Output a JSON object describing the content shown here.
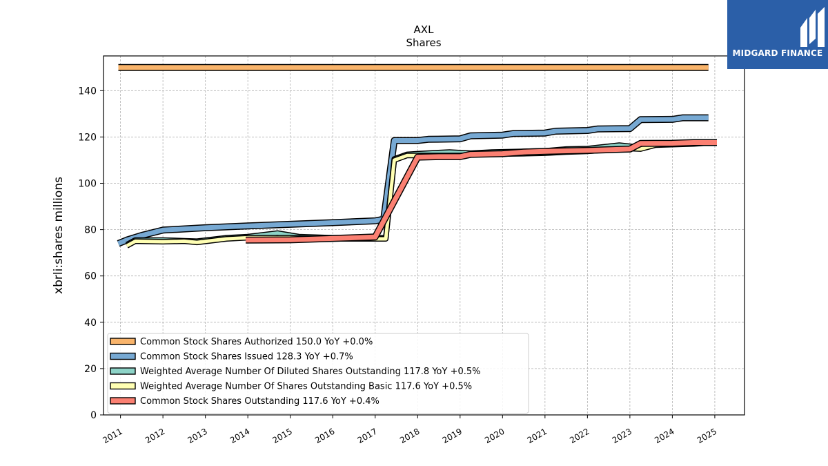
{
  "brand": {
    "name": "MIDGARD FINANCE",
    "color": "#2b5fa8"
  },
  "chart_data": {
    "type": "line",
    "title": "AXL",
    "subtitle": "Shares",
    "ylabel": "xbrli:shares millions",
    "xlabel": "",
    "xlim": [
      2010.6,
      2025.7
    ],
    "ylim": [
      0,
      155
    ],
    "x_ticks": [
      "2011",
      "2012",
      "2013",
      "2014",
      "2015",
      "2016",
      "2017",
      "2018",
      "2019",
      "2020",
      "2021",
      "2022",
      "2023",
      "2024",
      "2025"
    ],
    "y_ticks": [
      0,
      20,
      40,
      60,
      80,
      100,
      120,
      140
    ],
    "grid": true,
    "legend_position": "lower-left",
    "series": [
      {
        "name": "Common Stock Shares Authorized  150.0 YoY +0.0%",
        "color": "#f9b46b",
        "points": [
          [
            2010.95,
            150.0
          ],
          [
            2024.85,
            150.0
          ]
        ]
      },
      {
        "name": "Common Stock Shares Issued  128.3 YoY +0.7%",
        "color": "#77a9d3",
        "points": [
          [
            2010.95,
            74.0
          ],
          [
            2011.15,
            75.5
          ],
          [
            2011.5,
            77.5
          ],
          [
            2012.0,
            79.8
          ],
          [
            2013.0,
            80.8
          ],
          [
            2014.0,
            81.6
          ],
          [
            2015.0,
            82.3
          ],
          [
            2016.0,
            83.0
          ],
          [
            2017.0,
            83.8
          ],
          [
            2017.2,
            84.5
          ],
          [
            2017.45,
            118.5
          ],
          [
            2018.0,
            118.5
          ],
          [
            2018.25,
            119.0
          ],
          [
            2019.0,
            119.2
          ],
          [
            2019.25,
            120.5
          ],
          [
            2020.0,
            120.8
          ],
          [
            2020.25,
            121.5
          ],
          [
            2021.0,
            121.7
          ],
          [
            2021.25,
            122.5
          ],
          [
            2022.0,
            122.8
          ],
          [
            2022.25,
            123.5
          ],
          [
            2023.0,
            123.6
          ],
          [
            2023.25,
            127.5
          ],
          [
            2024.0,
            127.6
          ],
          [
            2024.25,
            128.3
          ],
          [
            2024.85,
            128.3
          ]
        ]
      },
      {
        "name": "Weighted Average Number Of Diluted Shares Outstanding  117.8 YoY +0.5%",
        "color": "#8dd3c7",
        "points": [
          [
            2011.15,
            73.5
          ],
          [
            2011.35,
            75.5
          ],
          [
            2012.0,
            75.5
          ],
          [
            2012.5,
            75.2
          ],
          [
            2012.8,
            75.0
          ],
          [
            2013.5,
            76.5
          ],
          [
            2014.0,
            77.0
          ],
          [
            2014.7,
            78.5
          ],
          [
            2015.2,
            77.0
          ],
          [
            2016.0,
            76.5
          ],
          [
            2017.0,
            76.5
          ],
          [
            2017.25,
            76.5
          ],
          [
            2017.45,
            110.5
          ],
          [
            2017.75,
            112.5
          ],
          [
            2018.0,
            112.8
          ],
          [
            2018.75,
            113.5
          ],
          [
            2019.25,
            113.0
          ],
          [
            2019.75,
            113.5
          ],
          [
            2020.5,
            113.8
          ],
          [
            2021.0,
            114.0
          ],
          [
            2021.5,
            114.8
          ],
          [
            2022.0,
            115.0
          ],
          [
            2022.75,
            116.5
          ],
          [
            2023.25,
            115.5
          ],
          [
            2023.75,
            117.0
          ],
          [
            2024.5,
            117.8
          ],
          [
            2025.0,
            117.8
          ]
        ]
      },
      {
        "name": "Weighted Average Number Of Shares Outstanding Basic  117.6 YoY +0.5%",
        "color": "#ffffb3",
        "points": [
          [
            2011.15,
            73.0
          ],
          [
            2011.35,
            75.0
          ],
          [
            2012.0,
            74.8
          ],
          [
            2012.5,
            75.0
          ],
          [
            2012.8,
            74.5
          ],
          [
            2013.5,
            76.0
          ],
          [
            2014.0,
            76.5
          ],
          [
            2015.0,
            76.5
          ],
          [
            2016.0,
            76.0
          ],
          [
            2017.0,
            76.0
          ],
          [
            2017.25,
            76.0
          ],
          [
            2017.45,
            110.0
          ],
          [
            2017.75,
            112.0
          ],
          [
            2018.0,
            112.0
          ],
          [
            2019.0,
            112.0
          ],
          [
            2019.5,
            112.5
          ],
          [
            2020.5,
            112.8
          ],
          [
            2021.0,
            113.0
          ],
          [
            2021.5,
            113.5
          ],
          [
            2022.0,
            113.8
          ],
          [
            2022.5,
            114.5
          ],
          [
            2023.0,
            115.0
          ],
          [
            2023.25,
            114.8
          ],
          [
            2023.6,
            116.5
          ],
          [
            2024.5,
            117.0
          ],
          [
            2025.0,
            117.6
          ]
        ]
      },
      {
        "name": "Common Stock Shares Outstanding  117.6 YoY +0.4%",
        "color": "#fb8072",
        "points": [
          [
            2013.95,
            75.5
          ],
          [
            2015.0,
            75.6
          ],
          [
            2016.0,
            76.2
          ],
          [
            2017.0,
            76.8
          ],
          [
            2018.0,
            111.3
          ],
          [
            2018.5,
            111.5
          ],
          [
            2019.0,
            111.5
          ],
          [
            2019.25,
            112.5
          ],
          [
            2020.0,
            112.8
          ],
          [
            2020.5,
            113.5
          ],
          [
            2021.0,
            113.8
          ],
          [
            2021.5,
            114.0
          ],
          [
            2022.0,
            114.2
          ],
          [
            2022.5,
            114.5
          ],
          [
            2023.0,
            114.8
          ],
          [
            2023.25,
            117.2
          ],
          [
            2024.0,
            117.3
          ],
          [
            2024.5,
            117.6
          ],
          [
            2025.05,
            117.6
          ]
        ]
      }
    ]
  }
}
